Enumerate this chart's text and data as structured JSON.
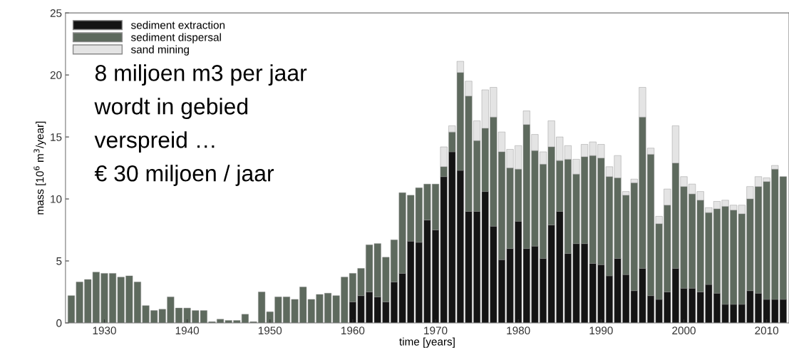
{
  "chart_data": {
    "type": "bar",
    "stacked": true,
    "xlabel": "time [years]",
    "ylabel": "mass [10$^{6}$ m$^{3}$/year]",
    "x": [
      1926,
      1927,
      1928,
      1929,
      1930,
      1931,
      1932,
      1933,
      1934,
      1935,
      1936,
      1937,
      1938,
      1939,
      1940,
      1941,
      1942,
      1943,
      1944,
      1945,
      1946,
      1947,
      1948,
      1949,
      1950,
      1951,
      1952,
      1953,
      1954,
      1955,
      1956,
      1957,
      1958,
      1959,
      1960,
      1961,
      1962,
      1963,
      1964,
      1965,
      1966,
      1967,
      1968,
      1969,
      1970,
      1971,
      1972,
      1973,
      1974,
      1975,
      1976,
      1977,
      1978,
      1979,
      1980,
      1981,
      1982,
      1983,
      1984,
      1985,
      1986,
      1987,
      1988,
      1989,
      1990,
      1991,
      1992,
      1993,
      1994,
      1995,
      1996,
      1997,
      1998,
      1999,
      2000,
      2001,
      2002,
      2003,
      2004,
      2005,
      2006,
      2007,
      2008,
      2009,
      2010,
      2011,
      2012
    ],
    "series": [
      {
        "name": "sediment extraction",
        "color": "#141414",
        "values": [
          null,
          null,
          null,
          null,
          null,
          null,
          null,
          null,
          null,
          null,
          null,
          null,
          null,
          null,
          null,
          null,
          null,
          null,
          null,
          null,
          null,
          null,
          null,
          null,
          null,
          null,
          null,
          null,
          null,
          null,
          null,
          null,
          null,
          null,
          1.7,
          2.2,
          2.5,
          2.1,
          1.7,
          3.3,
          4.0,
          6.6,
          6.5,
          8.3,
          7.5,
          11.8,
          13.8,
          12.3,
          9.0,
          9.0,
          10.6,
          7.8,
          5.1,
          6.0,
          8.2,
          6.0,
          6.2,
          5.2,
          7.9,
          9.0,
          5.6,
          6.4,
          6.4,
          4.8,
          4.7,
          3.8,
          5.2,
          3.9,
          2.6,
          4.4,
          2.2,
          1.9,
          2.5,
          4.4,
          2.8,
          2.8,
          2.5,
          3.1,
          2.4,
          1.5,
          1.5,
          1.5,
          2.6,
          2.4,
          1.9,
          1.9,
          1.9
        ]
      },
      {
        "name": "sediment dispersal",
        "color": "#5e6a5e",
        "values": [
          2.2,
          3.3,
          3.5,
          4.1,
          4.0,
          4.0,
          3.7,
          3.8,
          3.3,
          1.4,
          1.0,
          1.1,
          2.1,
          1.2,
          1.2,
          1.0,
          1.0,
          0.1,
          0.3,
          0.2,
          0.2,
          0.7,
          0.1,
          2.5,
          0.9,
          2.1,
          2.1,
          1.9,
          2.9,
          1.9,
          2.3,
          2.4,
          2.2,
          3.7,
          2.3,
          2.2,
          3.8,
          4.3,
          3.6,
          3.4,
          6.5,
          3.7,
          4.4,
          2.9,
          3.7,
          0.8,
          1.6,
          7.9,
          9.3,
          5.7,
          5.1,
          8.8,
          8.7,
          6.5,
          4.2,
          10.0,
          7.7,
          7.6,
          6.3,
          4.1,
          7.6,
          5.6,
          7.0,
          8.7,
          8.6,
          8.0,
          6.5,
          6.4,
          8.7,
          12.2,
          11.4,
          6.1,
          7.0,
          8.5,
          8.2,
          7.6,
          7.4,
          5.8,
          6.8,
          7.9,
          7.6,
          7.3,
          7.4,
          8.6,
          9.5,
          10.5,
          9.9
        ]
      },
      {
        "name": "sand mining",
        "color": "#e4e4e4",
        "values": [
          null,
          null,
          null,
          null,
          null,
          null,
          null,
          null,
          null,
          null,
          null,
          null,
          null,
          null,
          null,
          null,
          null,
          null,
          null,
          null,
          null,
          null,
          null,
          null,
          null,
          null,
          null,
          null,
          null,
          null,
          null,
          null,
          null,
          null,
          null,
          null,
          null,
          null,
          null,
          null,
          null,
          null,
          null,
          null,
          null,
          1.6,
          0.5,
          0.9,
          1.2,
          1.6,
          3.1,
          2.4,
          1.6,
          1.5,
          1.9,
          1.1,
          1.3,
          1.0,
          2.1,
          1.9,
          1.1,
          1.2,
          1.0,
          1.1,
          1.1,
          0.8,
          1.8,
          0.3,
          0.3,
          2.4,
          0.5,
          0.6,
          1.3,
          3.0,
          0.8,
          0.8,
          0.7,
          0.4,
          0.6,
          0.5,
          0.4,
          0.7,
          1.0,
          0.8,
          0.3,
          0.3,
          null
        ]
      }
    ],
    "xlim": [
      1925.3,
      2012.7
    ],
    "xticks": [
      1930,
      1940,
      1950,
      1960,
      1970,
      1980,
      1990,
      2000,
      2010
    ],
    "ylim": [
      0,
      25
    ],
    "yticks": [
      0,
      5,
      10,
      15,
      20,
      25
    ],
    "legend": "top left",
    "grid": false,
    "annotations": [
      "8 miljoen m3 per jaar",
      "wordt in gebied",
      "verspreid …",
      "€ 30 miljoen / jaar"
    ]
  }
}
